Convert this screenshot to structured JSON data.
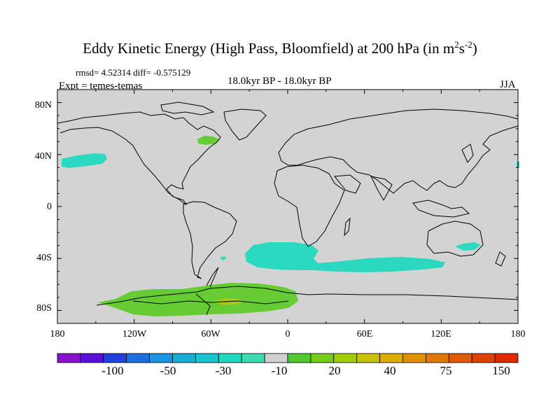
{
  "title": {
    "main": "Eddy Kinetic Energy (High Pass, Bloomfield) at 200 hPa (in m",
    "exp1": "2",
    "mid": "s",
    "exp2": "-2",
    "end": ")"
  },
  "stats": "rmsd= 4.52314 diff= -0.575129",
  "experiment": "Expt = temes-temas",
  "period": "18.0kyr BP - 18.0kyr BP",
  "season": "JJA",
  "lat_labels": [
    "80N",
    "40N",
    "0",
    "40S",
    "80S"
  ],
  "lon_labels": [
    "180",
    "120W",
    "60W",
    "0",
    "60E",
    "120E",
    "180"
  ],
  "colorbar": {
    "colors": [
      "#8a10d0",
      "#5a10d8",
      "#2040e0",
      "#1a70e0",
      "#1894e0",
      "#18acd8",
      "#18c4d0",
      "#20d8c0",
      "#3cdcb0",
      "#d0d0d0",
      "#50c830",
      "#74cc18",
      "#a0cc08",
      "#c8c000",
      "#dcac00",
      "#e09000",
      "#e07800",
      "#e05a00",
      "#e04000",
      "#e02800"
    ],
    "labels": [
      "-100",
      "-50",
      "-30",
      "-10",
      "20",
      "40",
      "75",
      "150"
    ]
  },
  "field_colors": {
    "land_bg": "#d3d3d3",
    "cyan": "#2ad9bf",
    "green": "#66cc33",
    "yellow_green": "#a8c81c"
  }
}
